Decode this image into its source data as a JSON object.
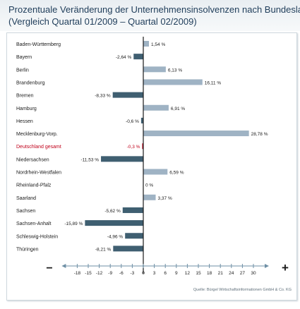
{
  "title_line1": "Prozentuale Veränderung der Unternehmensinsolvenzen nach Bundesland",
  "title_line2": "(Vergleich Quartal 01/2009 – Quartal 02/2009)",
  "source": "Quelle: Bürgel Wirtschaftsinformationen GmbH & Co. KG",
  "colors": {
    "positive": "#9fb3c4",
    "negative": "#3f5f71",
    "highlight": "#c0001a",
    "axis_line": "#1a1a1a",
    "scale_line": "#6e8fa5",
    "label": "#1a1a1a"
  },
  "chart_data": {
    "type": "bar",
    "orientation": "horizontal",
    "categories": [
      "Baden-Württemberg",
      "Bayern",
      "Berlin",
      "Brandenburg",
      "Bremen",
      "Hamburg",
      "Hessen",
      "Mecklenburg-Vorp.",
      "Deutschland gesamt",
      "Niedersachsen",
      "Nordrhein-Westfalen",
      "Rheinland-Pfalz",
      "Saarland",
      "Sachsen",
      "Sachsen-Anhalt",
      "Schleswig-Holstein",
      "Thüringen"
    ],
    "values": [
      1.54,
      -2.64,
      6.13,
      16.11,
      -8.33,
      6.91,
      -0.6,
      28.78,
      -0.3,
      -11.53,
      6.59,
      0,
      3.37,
      -5.62,
      -15.89,
      -4.96,
      -8.21
    ],
    "value_labels": [
      "1,54 %",
      "-2,64 %",
      "6,13 %",
      "16,11  %",
      "-8,33 %",
      "6,91 %",
      "-0,6 %",
      "28,78 %",
      "-0,3 %",
      "-11,53 %",
      "6,59 %",
      "0 %",
      "3,37 %",
      "-5,62 %",
      "-15,89 %",
      "-4,96 %",
      "-8,21 %"
    ],
    "highlight_category": "Deutschland gesamt",
    "xlim": [
      -18,
      30
    ],
    "xticks": [
      -18,
      -15,
      -12,
      -9,
      -6,
      -3,
      0,
      3,
      6,
      9,
      12,
      15,
      18,
      21,
      24,
      27,
      30
    ],
    "tick_labels": [
      "-18",
      "-15",
      "-12",
      "-9",
      "-6",
      "-3",
      "0",
      "3",
      "6",
      "9",
      "12",
      "15",
      "18",
      "21",
      "24",
      "27",
      "30"
    ],
    "minus_symbol": "−",
    "plus_symbol": "+",
    "grid": false
  }
}
